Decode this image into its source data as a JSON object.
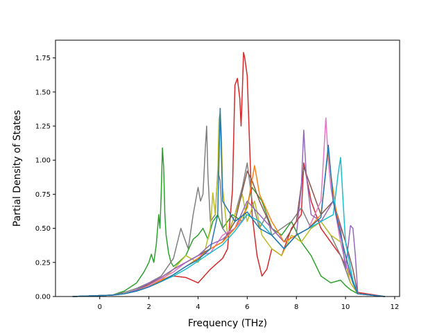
{
  "chart_data": {
    "type": "line",
    "title": "",
    "xlabel": "Frequency (THz)",
    "ylabel": "Partial Density of States",
    "xlim": [
      -1.8,
      12.2
    ],
    "ylim": [
      0.0,
      1.88
    ],
    "xticks": [
      0,
      2,
      4,
      6,
      8,
      10,
      12
    ],
    "yticks": [
      0.0,
      0.25,
      0.5,
      0.75,
      1.0,
      1.25,
      1.5,
      1.75
    ],
    "xtick_labels": [
      "0",
      "2",
      "4",
      "6",
      "8",
      "10",
      "12"
    ],
    "ytick_labels": [
      "0.00",
      "0.25",
      "0.50",
      "0.75",
      "1.00",
      "1.25",
      "1.50",
      "1.75"
    ],
    "grid": false,
    "legend": "none",
    "series": [
      {
        "color": "#2ca02c",
        "x": [
          -1.1,
          0.5,
          1.0,
          1.5,
          1.8,
          2.0,
          2.1,
          2.2,
          2.3,
          2.4,
          2.45,
          2.5,
          2.55,
          2.6,
          2.65,
          2.7,
          2.8,
          2.9,
          3.0,
          3.2,
          3.5,
          3.8,
          4.0,
          4.2,
          4.4,
          4.6,
          4.8,
          5.0,
          5.4,
          5.8,
          6.2,
          6.6,
          7.0,
          7.4,
          7.8,
          8.2,
          8.6,
          9.0,
          9.4,
          9.8,
          10.0,
          10.2,
          10.5,
          11.6
        ],
        "y": [
          0,
          0.01,
          0.04,
          0.1,
          0.18,
          0.25,
          0.31,
          0.25,
          0.38,
          0.6,
          0.5,
          0.75,
          1.09,
          0.95,
          0.6,
          0.45,
          0.32,
          0.25,
          0.22,
          0.25,
          0.3,
          0.42,
          0.45,
          0.5,
          0.42,
          0.55,
          0.6,
          0.5,
          0.6,
          0.55,
          0.8,
          0.7,
          0.5,
          0.45,
          0.55,
          0.4,
          0.3,
          0.15,
          0.1,
          0.12,
          0.08,
          0.05,
          0.02,
          0
        ]
      },
      {
        "color": "#d62728",
        "x": [
          -1.1,
          0.5,
          1.0,
          1.5,
          2.0,
          2.5,
          3.0,
          3.5,
          4.0,
          4.5,
          5.0,
          5.2,
          5.4,
          5.5,
          5.6,
          5.7,
          5.75,
          5.8,
          5.85,
          5.9,
          6.0,
          6.1,
          6.2,
          6.4,
          6.6,
          6.8,
          7.0,
          7.4,
          7.8,
          8.2,
          8.3,
          8.6,
          9.0,
          9.4,
          9.8,
          10.2,
          10.5,
          11.6
        ],
        "y": [
          0,
          0.01,
          0.02,
          0.05,
          0.08,
          0.12,
          0.15,
          0.14,
          0.1,
          0.2,
          0.28,
          0.35,
          0.78,
          1.55,
          1.6,
          1.45,
          1.25,
          1.5,
          1.79,
          1.75,
          1.62,
          1.1,
          0.6,
          0.3,
          0.15,
          0.2,
          0.35,
          0.3,
          0.5,
          0.6,
          0.98,
          0.7,
          0.5,
          0.4,
          0.3,
          0.15,
          0.03,
          0
        ]
      },
      {
        "color": "#7f7f7f",
        "x": [
          -1.1,
          0.5,
          1.0,
          1.5,
          2.0,
          2.5,
          3.0,
          3.3,
          3.6,
          3.8,
          4.0,
          4.1,
          4.2,
          4.3,
          4.35,
          4.4,
          4.5,
          4.7,
          4.8,
          4.9,
          5.0,
          5.2,
          5.5,
          5.8,
          6.0,
          6.2,
          6.5,
          6.8,
          7.0,
          7.4,
          7.8,
          8.2,
          8.6,
          9.0,
          9.4,
          9.8,
          10.2,
          10.5,
          11.6
        ],
        "y": [
          0,
          0.01,
          0.03,
          0.06,
          0.1,
          0.15,
          0.28,
          0.5,
          0.35,
          0.6,
          0.8,
          0.7,
          0.75,
          1.1,
          1.25,
          0.9,
          0.55,
          0.6,
          0.92,
          0.85,
          0.5,
          0.45,
          0.6,
          0.8,
          0.98,
          0.7,
          0.5,
          0.6,
          0.45,
          0.5,
          0.55,
          0.65,
          0.5,
          0.55,
          0.45,
          0.3,
          0.1,
          0.02,
          0
        ]
      },
      {
        "color": "#bcbd22",
        "x": [
          -1.1,
          0.5,
          1.0,
          1.5,
          2.0,
          2.5,
          3.0,
          3.5,
          4.0,
          4.3,
          4.5,
          4.6,
          4.7,
          4.8,
          4.85,
          4.9,
          4.95,
          5.0,
          5.2,
          5.5,
          5.8,
          6.0,
          6.3,
          6.6,
          7.0,
          7.4,
          7.8,
          8.2,
          8.6,
          9.0,
          9.2,
          9.4,
          9.8,
          10.0,
          10.2,
          10.5,
          11.6
        ],
        "y": [
          0,
          0.01,
          0.02,
          0.05,
          0.08,
          0.12,
          0.2,
          0.3,
          0.25,
          0.35,
          0.5,
          0.76,
          0.6,
          0.9,
          1.3,
          1.35,
          1.2,
          0.8,
          0.45,
          0.6,
          0.75,
          0.55,
          0.7,
          0.45,
          0.35,
          0.3,
          0.45,
          0.4,
          0.5,
          0.55,
          0.5,
          0.45,
          0.4,
          0.25,
          0.1,
          0.02,
          0
        ]
      },
      {
        "color": "#8c564b",
        "x": [
          -1.1,
          0.5,
          1.0,
          1.5,
          2.0,
          2.5,
          3.0,
          3.5,
          4.0,
          4.5,
          5.0,
          5.5,
          6.0,
          6.2,
          6.5,
          7.0,
          7.5,
          8.0,
          8.3,
          8.6,
          9.0,
          9.5,
          10.0,
          10.3,
          10.5,
          11.6
        ],
        "y": [
          0,
          0.01,
          0.02,
          0.05,
          0.09,
          0.14,
          0.2,
          0.25,
          0.3,
          0.35,
          0.4,
          0.55,
          0.92,
          0.85,
          0.7,
          0.5,
          0.4,
          0.55,
          0.95,
          0.8,
          0.6,
          0.7,
          0.4,
          0.2,
          0.02,
          0
        ]
      },
      {
        "color": "#e377c2",
        "x": [
          -1.1,
          0.5,
          1.0,
          1.5,
          2.0,
          2.5,
          3.0,
          3.5,
          4.0,
          4.5,
          5.0,
          5.5,
          6.0,
          6.5,
          7.0,
          7.5,
          8.0,
          8.5,
          9.0,
          9.1,
          9.2,
          9.3,
          9.4,
          9.6,
          9.8,
          10.0,
          10.3,
          10.5,
          11.6
        ],
        "y": [
          0,
          0.01,
          0.02,
          0.04,
          0.08,
          0.13,
          0.18,
          0.25,
          0.3,
          0.32,
          0.45,
          0.5,
          0.6,
          0.55,
          0.45,
          0.35,
          0.45,
          0.5,
          0.7,
          1.0,
          1.31,
          1.0,
          0.8,
          0.6,
          0.4,
          0.25,
          0.1,
          0.02,
          0
        ]
      },
      {
        "color": "#9467bd",
        "x": [
          -1.1,
          0.5,
          1.0,
          1.5,
          2.0,
          2.5,
          3.0,
          3.5,
          4.0,
          4.5,
          5.0,
          5.5,
          6.0,
          6.5,
          7.0,
          7.5,
          8.0,
          8.2,
          8.3,
          8.4,
          8.6,
          9.0,
          9.5,
          9.8,
          10.0,
          10.2,
          10.3,
          10.4,
          10.5,
          11.6
        ],
        "y": [
          0,
          0.01,
          0.02,
          0.05,
          0.1,
          0.14,
          0.2,
          0.25,
          0.3,
          0.38,
          0.42,
          0.5,
          0.7,
          0.6,
          0.5,
          0.4,
          0.45,
          0.8,
          1.22,
          0.9,
          0.6,
          0.55,
          0.7,
          0.5,
          0.2,
          0.52,
          0.5,
          0.3,
          0.02,
          0
        ]
      },
      {
        "color": "#ff7f0e",
        "x": [
          -1.1,
          0.5,
          1.0,
          1.5,
          2.0,
          2.5,
          3.0,
          3.5,
          4.0,
          4.5,
          5.0,
          5.5,
          6.0,
          6.3,
          6.5,
          7.0,
          7.5,
          8.0,
          8.5,
          9.0,
          9.3,
          9.4,
          9.6,
          9.8,
          10.0,
          10.3,
          10.5,
          11.6
        ],
        "y": [
          0,
          0.01,
          0.02,
          0.04,
          0.07,
          0.12,
          0.16,
          0.22,
          0.28,
          0.35,
          0.4,
          0.5,
          0.65,
          0.96,
          0.75,
          0.55,
          0.4,
          0.45,
          0.5,
          0.6,
          1.08,
          0.9,
          0.65,
          0.45,
          0.3,
          0.1,
          0.02,
          0
        ]
      },
      {
        "color": "#17becf",
        "x": [
          -1.1,
          0.5,
          1.0,
          1.5,
          2.0,
          2.5,
          3.0,
          3.5,
          4.0,
          4.5,
          5.0,
          5.5,
          6.0,
          6.5,
          7.0,
          7.5,
          8.0,
          8.5,
          9.0,
          9.5,
          9.7,
          9.8,
          9.9,
          10.0,
          10.3,
          10.5,
          11.6
        ],
        "y": [
          0,
          0.01,
          0.02,
          0.04,
          0.07,
          0.11,
          0.15,
          0.2,
          0.26,
          0.32,
          0.38,
          0.48,
          0.6,
          0.55,
          0.45,
          0.35,
          0.45,
          0.5,
          0.55,
          0.6,
          0.9,
          1.02,
          0.7,
          0.4,
          0.12,
          0.02,
          0
        ]
      },
      {
        "color": "#1f77b4",
        "x": [
          -1.1,
          0.5,
          1.0,
          1.5,
          2.0,
          2.5,
          3.0,
          3.5,
          4.0,
          4.5,
          4.8,
          4.9,
          5.0,
          5.5,
          6.0,
          6.5,
          7.0,
          7.5,
          8.0,
          8.5,
          9.0,
          9.3,
          9.5,
          9.8,
          10.0,
          10.3,
          10.5,
          11.6
        ],
        "y": [
          0,
          0.01,
          0.02,
          0.04,
          0.07,
          0.11,
          0.16,
          0.22,
          0.27,
          0.35,
          0.6,
          1.38,
          0.7,
          0.55,
          0.62,
          0.5,
          0.45,
          0.35,
          0.45,
          0.5,
          0.58,
          1.11,
          0.7,
          0.45,
          0.3,
          0.1,
          0.02,
          0
        ]
      }
    ]
  }
}
